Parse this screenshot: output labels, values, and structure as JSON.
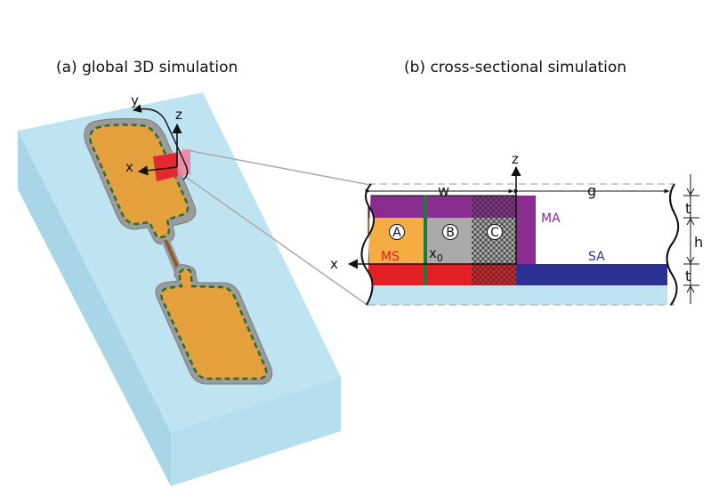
{
  "captions": {
    "left": "(a) global 3D simulation",
    "right": "(b) cross-sectional simulation"
  },
  "axes_3d": {
    "x": "x",
    "y": "y",
    "z": "z"
  },
  "axes_2d": {
    "x": "x",
    "z": "z",
    "x0_base": "x",
    "x0_sub": "0"
  },
  "dimensions": {
    "w": "w",
    "g": "g",
    "t_top": "t",
    "h": "h",
    "t_bottom": "t"
  },
  "regions": {
    "MA": "MA",
    "MS": "MS",
    "SA": "SA",
    "A": "A",
    "B": "B",
    "C": "C"
  },
  "colors": {
    "substrate": "#bfe4f1",
    "substrate_side": "#b2dcea",
    "electrode": "#e3a03c",
    "electrode_rim": "#9b9b9b",
    "dashed_outline": "#2f6b2f",
    "metal_air": "#8b2d90",
    "metal_substrate": "#e11f25",
    "substrate_air": "#2b3293",
    "region_a": "#f5ad43",
    "region_bc": "#aaaaaa",
    "x0_line": "#1d7a3a",
    "section_plane": "#ee7f98",
    "MA_text": "#8b2d90",
    "MS_text": "#e11f25",
    "SA_text": "#2b3293"
  }
}
